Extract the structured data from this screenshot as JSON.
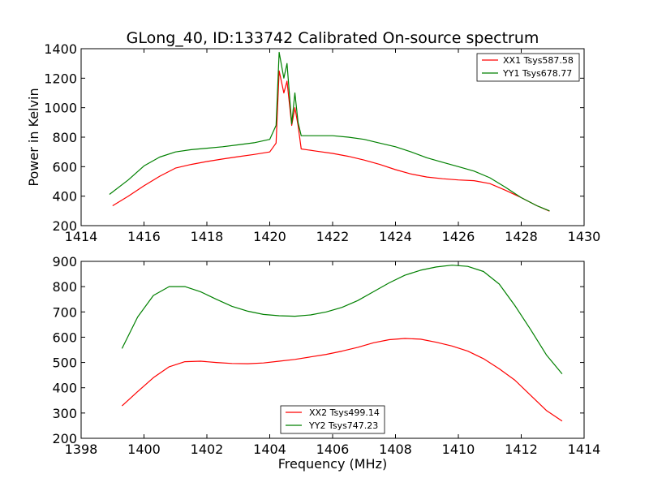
{
  "colors": {
    "xx": "#ff0000",
    "yy": "#008000"
  },
  "chart_data": [
    {
      "type": "line",
      "title": "GLong_40, ID:133742 Calibrated On-source spectrum",
      "xlabel": "",
      "ylabel": "Power in Kelvin",
      "xlim": [
        1414,
        1430
      ],
      "ylim": [
        200,
        1400
      ],
      "xticks": [
        1414,
        1416,
        1418,
        1420,
        1422,
        1424,
        1426,
        1428,
        1430
      ],
      "yticks": [
        200,
        400,
        600,
        800,
        1000,
        1200,
        1400
      ],
      "legend_position": "upper-right",
      "series": [
        {
          "name": "XX1 Tsys587.58",
          "color": "#ff0000",
          "x": [
            1415.0,
            1415.5,
            1416.0,
            1416.5,
            1417.0,
            1417.5,
            1418.0,
            1418.5,
            1419.0,
            1419.5,
            1420.0,
            1420.2,
            1420.3,
            1420.45,
            1420.55,
            1420.7,
            1420.8,
            1420.9,
            1421.0,
            1421.5,
            1422.0,
            1422.5,
            1423.0,
            1423.5,
            1424.0,
            1424.5,
            1425.0,
            1425.5,
            1426.0,
            1426.5,
            1427.0,
            1427.5,
            1428.0,
            1428.5,
            1428.9
          ],
          "y": [
            335,
            400,
            470,
            535,
            590,
            615,
            635,
            652,
            668,
            683,
            700,
            760,
            1250,
            1100,
            1180,
            880,
            1000,
            880,
            720,
            705,
            690,
            670,
            645,
            615,
            580,
            550,
            530,
            518,
            510,
            505,
            485,
            440,
            390,
            335,
            298
          ]
        },
        {
          "name": "YY1 Tsys678.77",
          "color": "#008000",
          "x": [
            1414.9,
            1415.5,
            1416.0,
            1416.5,
            1417.0,
            1417.5,
            1418.0,
            1418.5,
            1419.0,
            1419.5,
            1420.0,
            1420.2,
            1420.3,
            1420.45,
            1420.55,
            1420.7,
            1420.8,
            1420.9,
            1421.0,
            1421.5,
            1422.0,
            1422.5,
            1423.0,
            1423.5,
            1424.0,
            1424.5,
            1425.0,
            1425.5,
            1426.0,
            1426.5,
            1427.0,
            1427.5,
            1428.0,
            1428.5,
            1428.9
          ],
          "y": [
            412,
            510,
            605,
            665,
            700,
            715,
            725,
            735,
            748,
            762,
            785,
            880,
            1375,
            1200,
            1300,
            890,
            1100,
            900,
            810,
            810,
            810,
            800,
            785,
            760,
            735,
            700,
            660,
            630,
            600,
            570,
            525,
            460,
            390,
            335,
            300
          ]
        }
      ]
    },
    {
      "type": "line",
      "title": "",
      "xlabel": "Frequency (MHz)",
      "ylabel": "",
      "xlim": [
        1398,
        1414
      ],
      "ylim": [
        200,
        900
      ],
      "xticks": [
        1398,
        1400,
        1402,
        1404,
        1406,
        1408,
        1410,
        1412,
        1414
      ],
      "yticks": [
        200,
        300,
        400,
        500,
        600,
        700,
        800,
        900
      ],
      "legend_position": "lower-center",
      "series": [
        {
          "name": "XX2 Tsys499.14",
          "color": "#ff0000",
          "x": [
            1399.3,
            1399.8,
            1400.3,
            1400.8,
            1401.3,
            1401.8,
            1402.3,
            1402.8,
            1403.3,
            1403.8,
            1404.3,
            1404.8,
            1405.3,
            1405.8,
            1406.3,
            1406.8,
            1407.3,
            1407.8,
            1408.3,
            1408.8,
            1409.3,
            1409.8,
            1410.3,
            1410.8,
            1411.3,
            1411.8,
            1412.3,
            1412.8,
            1413.3
          ],
          "y": [
            328,
            385,
            440,
            483,
            503,
            505,
            500,
            496,
            495,
            498,
            505,
            512,
            522,
            532,
            545,
            560,
            578,
            590,
            595,
            592,
            580,
            565,
            545,
            515,
            475,
            430,
            370,
            310,
            268
          ]
        },
        {
          "name": "YY2 Tsys747.23",
          "color": "#008000",
          "x": [
            1399.3,
            1399.8,
            1400.3,
            1400.8,
            1401.3,
            1401.8,
            1402.3,
            1402.8,
            1403.3,
            1403.8,
            1404.3,
            1404.8,
            1405.3,
            1405.8,
            1406.3,
            1406.8,
            1407.3,
            1407.8,
            1408.3,
            1408.8,
            1409.3,
            1409.8,
            1410.3,
            1410.8,
            1411.3,
            1411.8,
            1412.3,
            1412.8,
            1413.3
          ],
          "y": [
            555,
            680,
            765,
            800,
            800,
            780,
            750,
            722,
            703,
            690,
            685,
            683,
            688,
            700,
            718,
            745,
            780,
            815,
            845,
            865,
            878,
            885,
            880,
            860,
            810,
            725,
            630,
            530,
            455
          ]
        }
      ]
    }
  ]
}
